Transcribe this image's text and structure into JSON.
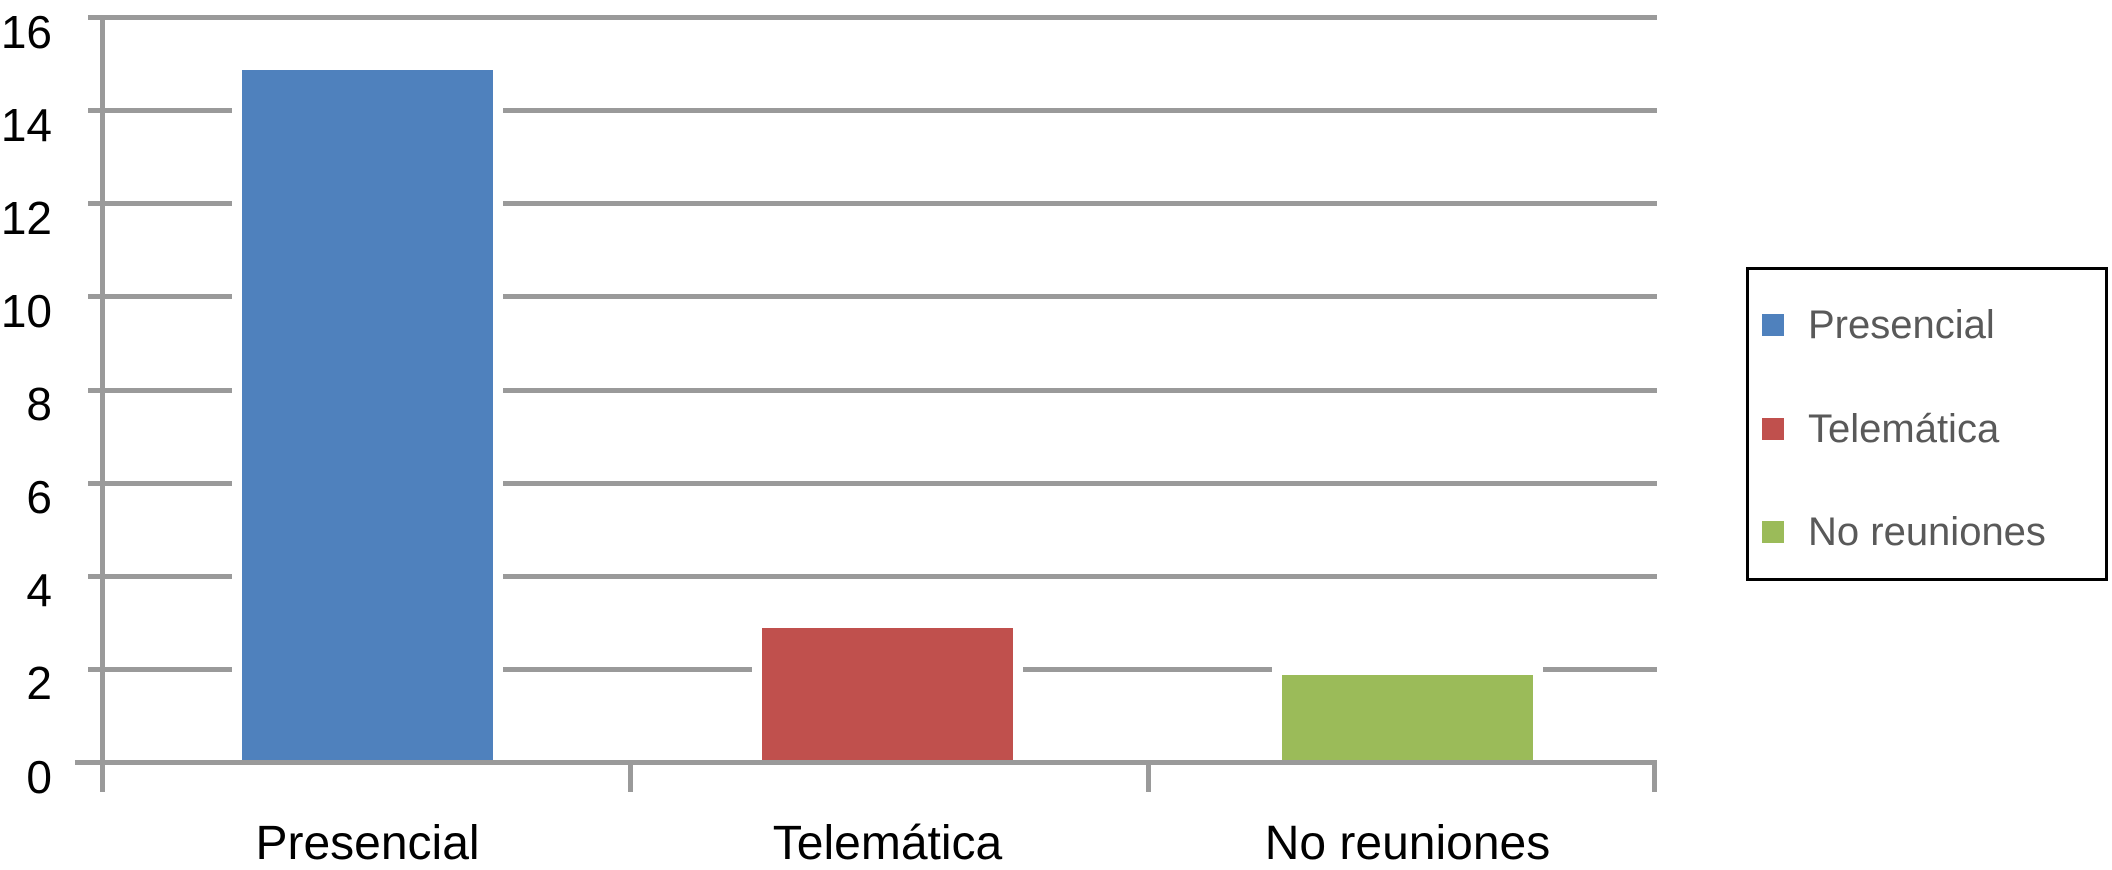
{
  "chart_data": {
    "type": "bar",
    "title": "",
    "xlabel": "",
    "ylabel": "",
    "categories": [
      "Presencial",
      "Telemática",
      "No reuniones"
    ],
    "values": [
      15,
      3,
      2
    ],
    "bar_colors": [
      "#4f81bd",
      "#c0504d",
      "#9bbb59"
    ],
    "ylim": [
      0,
      16
    ],
    "yticks": [
      0,
      2,
      4,
      6,
      8,
      10,
      12,
      14,
      16
    ],
    "grid": true,
    "legend": {
      "position": "right",
      "entries": [
        {
          "label": "Presencial",
          "color": "#4f81bd"
        },
        {
          "label": "Telemática",
          "color": "#c0504d"
        },
        {
          "label": "No reuniones",
          "color": "#9bbb59"
        }
      ]
    },
    "colors": {
      "background": "#ffffff",
      "gridline": "#9a9a9a",
      "axis": "#9a9a9a",
      "y_tick_label": "#000000",
      "category_label": "#000000",
      "legend_text": "#595959",
      "legend_border": "#000000"
    }
  }
}
